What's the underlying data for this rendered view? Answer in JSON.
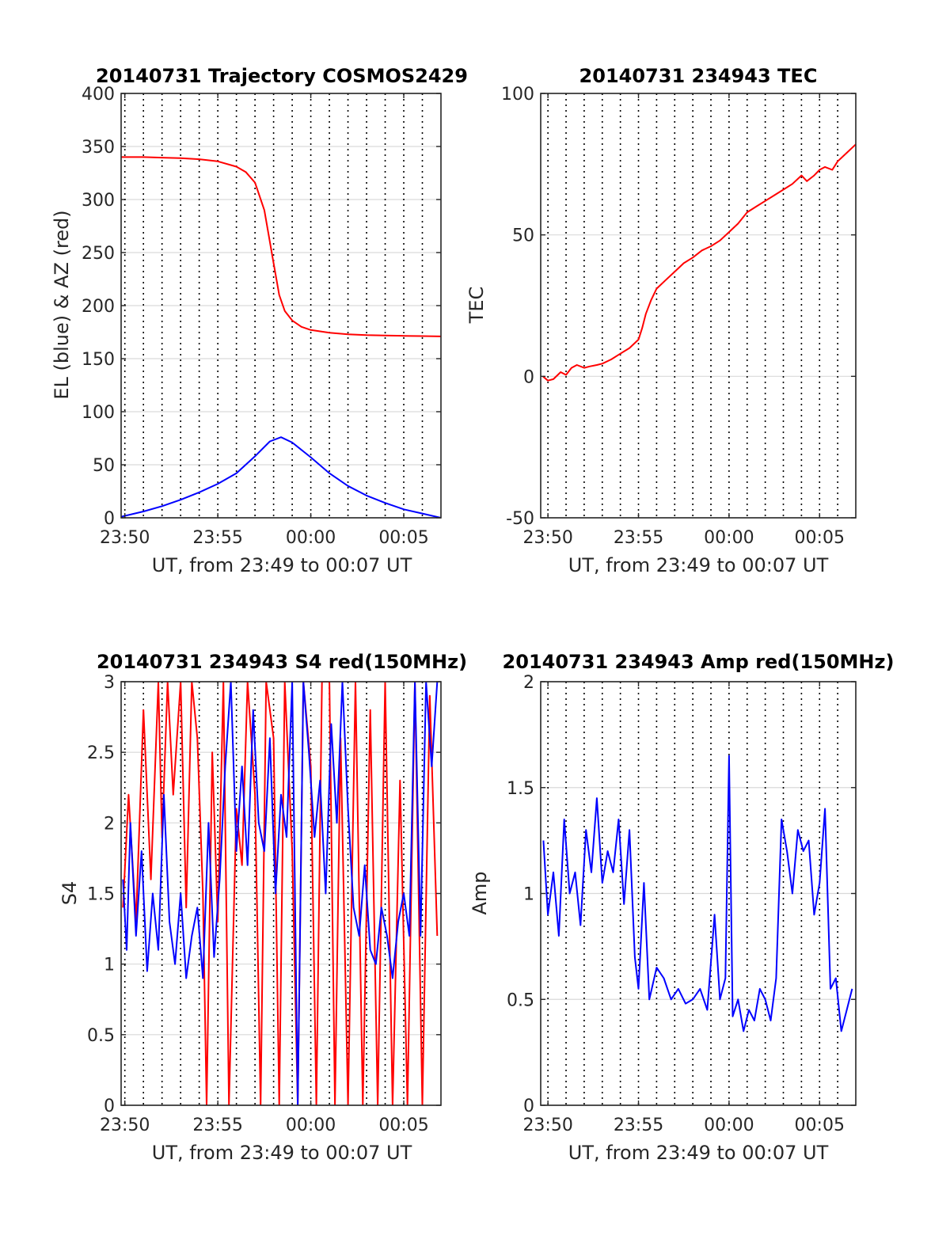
{
  "figure": {
    "background": "#ffffff",
    "grid_color": "#d9d9d9",
    "axis_color": "#262626"
  },
  "chart_data": [
    {
      "id": "traj",
      "type": "line",
      "title": "20140731 Trajectory COSMOS2429",
      "xlabel": "UT, from 23:49 to 00:07 UT",
      "ylabel": "EL (blue) & AZ (red)",
      "xlim_minutes_after_2349": [
        0.8,
        18.0
      ],
      "x_ticks": [
        {
          "label": "23:50",
          "min": 1
        },
        {
          "label": "23:55",
          "min": 6
        },
        {
          "label": "00:00",
          "min": 11
        },
        {
          "label": "00:05",
          "min": 16
        }
      ],
      "x_dotted_grid_minutes": [
        1,
        2,
        3,
        4,
        5,
        6,
        7,
        8,
        9,
        10,
        11,
        12,
        13,
        14,
        15,
        16,
        17
      ],
      "ylim": [
        0,
        400
      ],
      "y_ticks": [
        "0",
        "50",
        "100",
        "150",
        "200",
        "250",
        "300",
        "350",
        "400"
      ],
      "series": [
        {
          "color": "#ff0000",
          "x": [
            0.8,
            2,
            3,
            4,
            5,
            6,
            7,
            7.5,
            8,
            8.5,
            9,
            9.3,
            9.6,
            10,
            10.5,
            11,
            12,
            13,
            14,
            15,
            16,
            17,
            18
          ],
          "y": [
            340,
            340,
            339.5,
            339,
            338,
            336,
            331,
            326,
            316,
            290,
            240,
            210,
            195,
            186,
            180,
            177,
            174.5,
            173,
            172.2,
            171.8,
            171.5,
            171.3,
            171
          ]
        },
        {
          "color": "#0000ff",
          "x": [
            0.8,
            2,
            3,
            4,
            5,
            6,
            7,
            8,
            8.8,
            9.4,
            10,
            11,
            12,
            13,
            14,
            15,
            16,
            17,
            18
          ],
          "y": [
            1,
            6,
            11,
            17,
            24,
            32,
            42,
            58,
            72,
            76,
            71,
            57,
            42,
            30,
            21,
            14,
            8,
            4,
            0
          ]
        }
      ]
    },
    {
      "id": "tec",
      "type": "line",
      "title": "20140731 234943 TEC",
      "xlabel": "UT, from 23:49 to 00:07 UT",
      "ylabel": "TEC",
      "xlim_minutes_after_2349": [
        0.6,
        18.0
      ],
      "x_ticks": [
        {
          "label": "23:50",
          "min": 1
        },
        {
          "label": "23:55",
          "min": 6
        },
        {
          "label": "00:00",
          "min": 11
        },
        {
          "label": "00:05",
          "min": 16
        }
      ],
      "x_dotted_grid_minutes": [
        1,
        2,
        3,
        4,
        5,
        6,
        7,
        8,
        9,
        10,
        11,
        12,
        13,
        14,
        15,
        16,
        17
      ],
      "ylim": [
        -50,
        100
      ],
      "y_ticks": [
        "-50",
        "0",
        "50",
        "100"
      ],
      "series": [
        {
          "color": "#ff0000",
          "x": [
            0.72,
            1,
            1.3,
            1.7,
            2,
            2.3,
            2.6,
            3,
            3.3,
            3.7,
            4,
            4.5,
            5,
            5.5,
            6,
            6.2,
            6.4,
            6.7,
            7,
            7.5,
            8,
            8.5,
            9,
            9.5,
            10,
            10.5,
            11,
            11.5,
            12,
            12.5,
            13,
            13.5,
            14,
            14.5,
            15,
            15.3,
            15.7,
            16,
            16.3,
            16.7,
            17,
            17.5,
            18
          ],
          "y": [
            0,
            -1.5,
            -1,
            1.5,
            0.5,
            3,
            4,
            3,
            3.5,
            4,
            4.5,
            6,
            8,
            10,
            13,
            17,
            22,
            27,
            31,
            34,
            37,
            40,
            42,
            44.5,
            46,
            48,
            51,
            54,
            58,
            60,
            62,
            64,
            66,
            68,
            71,
            69,
            71,
            73,
            74,
            73,
            76,
            79,
            82
          ]
        }
      ]
    },
    {
      "id": "s4",
      "type": "line",
      "title": "20140731 234943 S4 red(150MHz)",
      "xlabel": "UT, from 23:49 to 00:07 UT",
      "ylabel": "S4",
      "xlim_minutes_after_2349": [
        0.8,
        18.0
      ],
      "x_ticks": [
        {
          "label": "23:50",
          "min": 1
        },
        {
          "label": "23:55",
          "min": 6
        },
        {
          "label": "00:00",
          "min": 11
        },
        {
          "label": "00:05",
          "min": 16
        }
      ],
      "x_dotted_grid_minutes": [
        1,
        2,
        3,
        4,
        5,
        6,
        7,
        8,
        9,
        10,
        11,
        12,
        13,
        14,
        15,
        16,
        17
      ],
      "ylim": [
        0,
        3
      ],
      "y_ticks": [
        "0",
        "0.5",
        "1",
        "1.5",
        "2",
        "2.5",
        "3"
      ],
      "note_series_colors": [
        "#ff0000",
        "#0000ff"
      ],
      "series": [
        {
          "color": "#ff0000",
          "x": [
            0.9,
            1.2,
            1.6,
            2,
            2.4,
            2.8,
            3,
            3.3,
            3.6,
            4,
            4.3,
            4.6,
            4.9,
            5.2,
            5.4,
            5.7,
            6,
            6.3,
            6.6,
            7,
            7.3,
            7.6,
            8,
            8.3,
            8.6,
            9,
            9.3,
            9.6,
            10,
            10.3,
            10.6,
            11,
            11.3,
            11.6,
            12,
            12.3,
            12.6,
            13,
            13.4,
            13.8,
            14.2,
            14.6,
            15,
            15.4,
            15.8,
            16.2,
            16.6,
            17,
            17.4,
            17.8
          ],
          "y": [
            1.4,
            2.2,
            1.3,
            2.8,
            1.6,
            3,
            1.9,
            3,
            2.2,
            3,
            1.4,
            3,
            2.6,
            1.5,
            0,
            2.5,
            1.3,
            3,
            0,
            2.1,
            1.7,
            3,
            2.2,
            0,
            3,
            2.6,
            0,
            3,
            1.8,
            0,
            3,
            2.4,
            0,
            3,
            3,
            0,
            2.6,
            0,
            3,
            0,
            2.8,
            0,
            3,
            0,
            2.3,
            0,
            3,
            0,
            2.9,
            1.2
          ]
        },
        {
          "color": "#0000ff",
          "x": [
            0.9,
            1.1,
            1.3,
            1.6,
            1.9,
            2.2,
            2.5,
            2.8,
            3.1,
            3.4,
            3.7,
            4,
            4.3,
            4.6,
            4.9,
            5.2,
            5.5,
            5.8,
            6.1,
            6.4,
            6.7,
            7,
            7.3,
            7.6,
            7.9,
            8.2,
            8.5,
            8.8,
            9.1,
            9.4,
            9.7,
            10,
            10.3,
            10.6,
            10.9,
            11.2,
            11.5,
            11.8,
            12.1,
            12.4,
            12.7,
            13,
            13.3,
            13.6,
            13.9,
            14.2,
            14.5,
            14.8,
            15.1,
            15.4,
            15.7,
            16,
            16.3,
            16.6,
            16.9,
            17.2,
            17.5,
            17.8
          ],
          "y": [
            1.6,
            1.1,
            2,
            1.2,
            1.8,
            0.95,
            1.5,
            1.1,
            2.2,
            1.3,
            1,
            1.5,
            0.9,
            1.2,
            1.4,
            0.9,
            2,
            1.05,
            1.6,
            2.4,
            3,
            1.8,
            2.4,
            1.7,
            2.8,
            2,
            1.8,
            2.6,
            1.5,
            2.2,
            1.9,
            3,
            0,
            3,
            2.5,
            1.9,
            2.3,
            1.5,
            2.7,
            2,
            3,
            2.1,
            1.4,
            1.2,
            1.7,
            1.1,
            1,
            1.4,
            1.2,
            0.9,
            1.3,
            1.5,
            1.2,
            3,
            1.2,
            3,
            2.4,
            3
          ]
        }
      ]
    },
    {
      "id": "amp",
      "type": "line",
      "title": "20140731 234943 Amp red(150MHz)",
      "xlabel": "UT, from 23:49 to 00:07 UT",
      "ylabel": "Amp",
      "xlim_minutes_after_2349": [
        0.6,
        18.0
      ],
      "x_ticks": [
        {
          "label": "23:50",
          "min": 1
        },
        {
          "label": "23:55",
          "min": 6
        },
        {
          "label": "00:00",
          "min": 11
        },
        {
          "label": "00:05",
          "min": 16
        }
      ],
      "x_dotted_grid_minutes": [
        1,
        2,
        3,
        4,
        5,
        6,
        7,
        8,
        9,
        10,
        11,
        12,
        13,
        14,
        15,
        16,
        17
      ],
      "ylim": [
        0,
        2
      ],
      "y_ticks": [
        "0",
        "0.5",
        "1",
        "1.5",
        "2"
      ],
      "series": [
        {
          "color": "#0000ff",
          "x": [
            0.75,
            1,
            1.3,
            1.6,
            1.9,
            2.2,
            2.5,
            2.8,
            3.1,
            3.4,
            3.7,
            4,
            4.3,
            4.6,
            4.9,
            5.2,
            5.5,
            5.8,
            6,
            6.3,
            6.6,
            7,
            7.4,
            7.8,
            8.2,
            8.6,
            9,
            9.4,
            9.8,
            10.2,
            10.5,
            10.8,
            11,
            11.2,
            11.5,
            11.8,
            12.1,
            12.4,
            12.7,
            13,
            13.3,
            13.6,
            13.9,
            14.2,
            14.5,
            14.8,
            15.1,
            15.4,
            15.7,
            16,
            16.3,
            16.6,
            16.9,
            17.2,
            17.5,
            17.8
          ],
          "y": [
            1.25,
            0.9,
            1.1,
            0.8,
            1.35,
            1,
            1.1,
            0.85,
            1.3,
            1.1,
            1.45,
            1.05,
            1.2,
            1.1,
            1.35,
            0.95,
            1.3,
            0.7,
            0.55,
            1.05,
            0.5,
            0.65,
            0.6,
            0.5,
            0.55,
            0.48,
            0.5,
            0.55,
            0.45,
            0.9,
            0.5,
            0.6,
            1.65,
            0.42,
            0.5,
            0.35,
            0.45,
            0.4,
            0.55,
            0.5,
            0.4,
            0.6,
            1.35,
            1.2,
            1.0,
            1.3,
            1.2,
            1.25,
            0.9,
            1.05,
            1.4,
            0.55,
            0.6,
            0.35,
            0.45,
            0.55
          ]
        }
      ]
    }
  ]
}
